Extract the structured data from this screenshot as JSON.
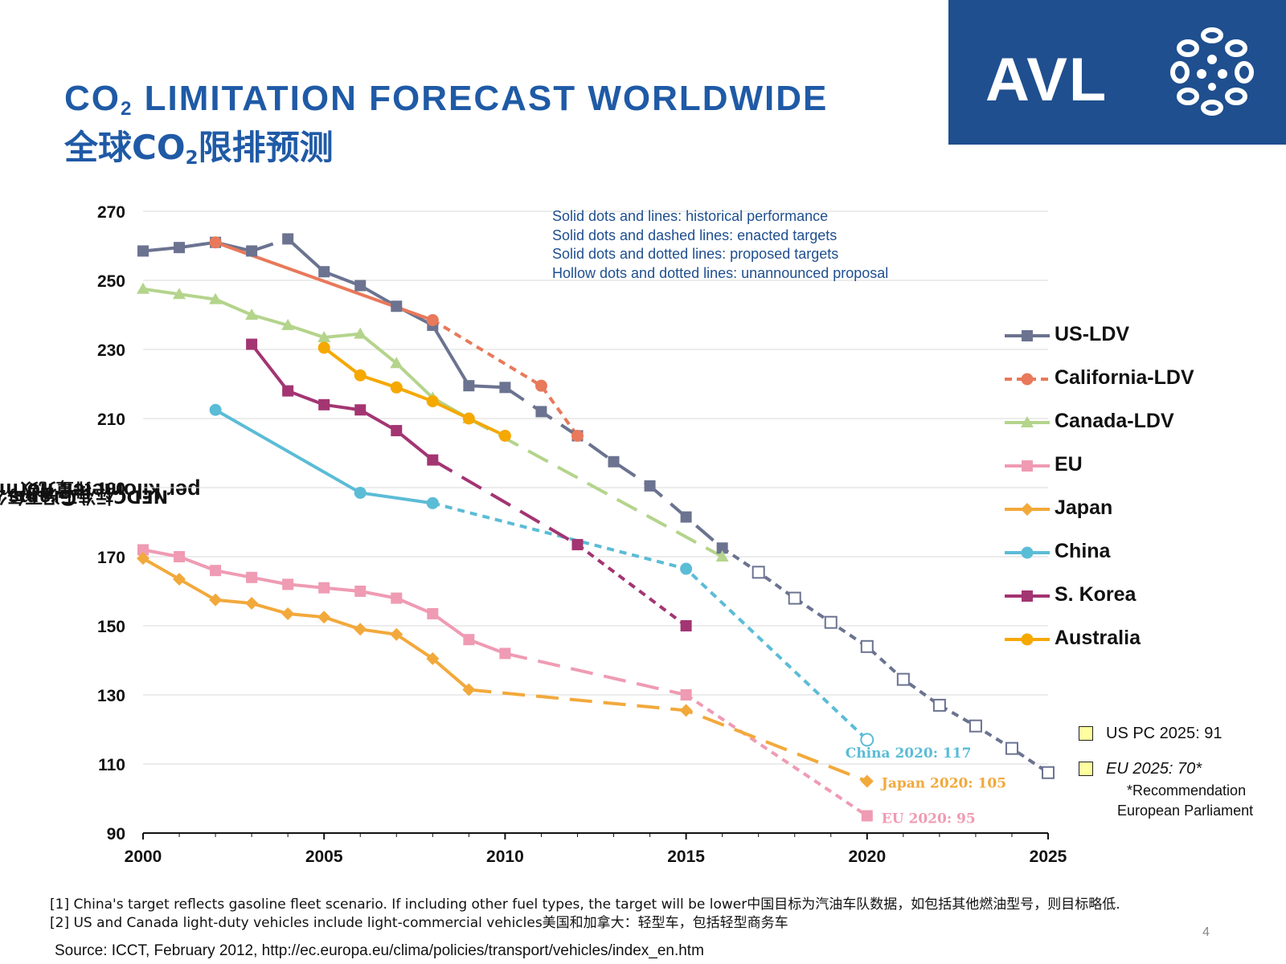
{
  "header": {
    "title_en_pre": "CO",
    "title_en_sub": "2",
    "title_en_post": " LIMITATION FORECAST WORLDWIDE",
    "title_cn_pre": "全球CO",
    "title_cn_sub": "2",
    "title_cn_post": "限排预测",
    "logo_text": "AVL",
    "brand_color": "#1f4f8f",
    "title_color": "#1f5aa6"
  },
  "notes": [
    "Solid dots and lines: historical performance",
    "Solid dots and dashed lines: enacted targets",
    "Solid dots and dotted lines: proposed targets",
    "Hollow dots and dotted lines: unannounced proposal"
  ],
  "side_notes": {
    "us_pc": "US PC 2025: 91",
    "eu": "EU 2025: 70*",
    "footnote_line1": "*Recommendation",
    "footnote_line2": "European Parliament"
  },
  "footnotes": [
    "[1] China's target reflects gasoline fleet scenario. If including other fuel types, the target will be lower中国目标为汽油车队数据，如包括其他燃油型号，则目标略低.",
    "[2] US and Canada light-duty vehicles include light-commercial vehicles美国和加拿大：轻型车，包括轻型商务车"
  ],
  "source": "Source: ICCT, February 2012, http://ec.europa.eu/clima/policies/transport/vehicles/index_en.htm",
  "page_number": "4",
  "chart_data": {
    "type": "line",
    "ylabel_line1_pre": "Grams CO",
    "ylabel_line1_sub": "2",
    "ylabel_line1_post": " per kilometer, normalized to NEDC",
    "ylabel_line2_pre": "NEDC标准工况下每公里CO",
    "ylabel_line2_sub": "2",
    "ylabel_line2_post": " 排量克数",
    "xlim": [
      2000,
      2025
    ],
    "ylim": [
      90,
      270
    ],
    "xticks": [
      2000,
      2005,
      2010,
      2015,
      2020,
      2025
    ],
    "yticks": [
      90,
      110,
      130,
      150,
      170,
      190,
      210,
      230,
      250,
      270
    ],
    "grid": "horizontal",
    "legend_position": "right",
    "series": [
      {
        "name": "US-LDV",
        "color": "#6b7390",
        "marker": "square",
        "segments": [
          {
            "style": "solid",
            "points": [
              [
                2000,
                258.5
              ],
              [
                2001,
                259.5
              ],
              [
                2002,
                261
              ],
              [
                2003,
                258.5
              ]
            ]
          },
          {
            "style": "dashed",
            "points": [
              [
                2003,
                258.5
              ],
              [
                2004,
                262
              ]
            ]
          },
          {
            "style": "solid",
            "points": [
              [
                2004,
                262
              ],
              [
                2005,
                252.5
              ],
              [
                2006,
                248.5
              ],
              [
                2007,
                242.5
              ],
              [
                2008,
                237
              ],
              [
                2009,
                219.5
              ],
              [
                2010,
                219
              ]
            ]
          },
          {
            "style": "dashed",
            "points": [
              [
                2010,
                219
              ],
              [
                2011,
                212
              ],
              [
                2012,
                205
              ],
              [
                2013,
                197.5
              ],
              [
                2014,
                190.5
              ],
              [
                2015,
                181.5
              ],
              [
                2016,
                172.5
              ]
            ]
          },
          {
            "style": "dotted",
            "hollow": true,
            "points": [
              [
                2016,
                172.5
              ],
              [
                2017,
                165.5
              ],
              [
                2018,
                158
              ],
              [
                2019,
                151
              ],
              [
                2020,
                144
              ],
              [
                2021,
                134.5
              ],
              [
                2022,
                127
              ],
              [
                2023,
                121
              ],
              [
                2024,
                114.5
              ],
              [
                2025,
                107.5
              ]
            ]
          }
        ]
      },
      {
        "name": "California-LDV",
        "color": "#e8795a",
        "marker": "circle",
        "segments": [
          {
            "style": "solid",
            "points": [
              [
                2002,
                261
              ],
              [
                2008,
                238.5
              ]
            ]
          },
          {
            "style": "dotted",
            "points": [
              [
                2008,
                238.5
              ],
              [
                2011,
                219.5
              ],
              [
                2012,
                205
              ]
            ]
          }
        ]
      },
      {
        "name": "Canada-LDV",
        "color": "#b4d48c",
        "marker": "triangle",
        "segments": [
          {
            "style": "solid",
            "points": [
              [
                2000,
                247.5
              ],
              [
                2001,
                246
              ],
              [
                2002,
                244.5
              ],
              [
                2003,
                240
              ],
              [
                2004,
                237
              ],
              [
                2005,
                233.5
              ],
              [
                2006,
                234.5
              ],
              [
                2007,
                226
              ],
              [
                2008,
                216
              ],
              [
                2009,
                210
              ]
            ]
          },
          {
            "style": "dashed",
            "points": [
              [
                2009,
                210
              ],
              [
                2016,
                170
              ]
            ]
          }
        ]
      },
      {
        "name": "EU",
        "color": "#ef9bb3",
        "marker": "square",
        "segments": [
          {
            "style": "solid",
            "points": [
              [
                2000,
                172
              ],
              [
                2001,
                170
              ],
              [
                2002,
                166
              ],
              [
                2003,
                164
              ],
              [
                2004,
                162
              ],
              [
                2005,
                161
              ],
              [
                2006,
                160
              ],
              [
                2007,
                158
              ],
              [
                2008,
                153.5
              ],
              [
                2009,
                146
              ],
              [
                2010,
                142
              ]
            ]
          },
          {
            "style": "dashed",
            "points": [
              [
                2010,
                142
              ],
              [
                2015,
                130
              ]
            ]
          },
          {
            "style": "dotted",
            "points": [
              [
                2015,
                130
              ],
              [
                2020,
                95
              ]
            ]
          }
        ]
      },
      {
        "name": "Japan",
        "color": "#f2a93b",
        "marker": "diamond",
        "segments": [
          {
            "style": "solid",
            "points": [
              [
                2000,
                169.5
              ],
              [
                2001,
                163.5
              ],
              [
                2002,
                157.5
              ],
              [
                2003,
                156.5
              ],
              [
                2004,
                153.5
              ],
              [
                2005,
                152.5
              ],
              [
                2006,
                149
              ],
              [
                2007,
                147.5
              ],
              [
                2008,
                140.5
              ],
              [
                2009,
                131.5
              ]
            ]
          },
          {
            "style": "dashed",
            "points": [
              [
                2009,
                131.5
              ],
              [
                2015,
                125.5
              ],
              [
                2020,
                105
              ]
            ]
          }
        ]
      },
      {
        "name": "China",
        "color": "#5bbcd6",
        "marker": "circle",
        "segments": [
          {
            "style": "solid",
            "points": [
              [
                2002,
                212.5
              ],
              [
                2006,
                188.5
              ],
              [
                2008,
                185.5
              ]
            ]
          },
          {
            "style": "dotted",
            "points": [
              [
                2008,
                185.5
              ],
              [
                2015,
                166.5
              ],
              [
                2020,
                117
              ]
            ]
          }
        ],
        "hollow_points": [
          [
            2020,
            117
          ]
        ]
      },
      {
        "name": "S. Korea",
        "color": "#a33572",
        "marker": "square",
        "segments": [
          {
            "style": "solid",
            "points": [
              [
                2003,
                231.5
              ],
              [
                2004,
                218
              ],
              [
                2005,
                214
              ],
              [
                2006,
                212.5
              ],
              [
                2007,
                206.5
              ],
              [
                2008,
                198
              ]
            ]
          },
          {
            "style": "dashed",
            "points": [
              [
                2008,
                198
              ],
              [
                2012,
                173.5
              ]
            ]
          },
          {
            "style": "dotted",
            "points": [
              [
                2012,
                173.5
              ],
              [
                2015,
                150
              ]
            ]
          }
        ]
      },
      {
        "name": "Australia",
        "color": "#f5a800",
        "marker": "circle",
        "segments": [
          {
            "style": "solid",
            "points": [
              [
                2005,
                230.5
              ],
              [
                2006,
                222.5
              ],
              [
                2007,
                219
              ],
              [
                2008,
                215
              ],
              [
                2009,
                210
              ],
              [
                2010,
                205
              ]
            ]
          }
        ]
      }
    ],
    "annotations": [
      {
        "text": "China 2020: 117",
        "x": 2020,
        "y": 117,
        "color": "#5bbcd6"
      },
      {
        "text": "Japan 2020: 105",
        "x": 2020,
        "y": 105,
        "color": "#f2a93b"
      },
      {
        "text": "EU 2020: 95",
        "x": 2020,
        "y": 95,
        "color": "#ef9bb3"
      }
    ]
  }
}
